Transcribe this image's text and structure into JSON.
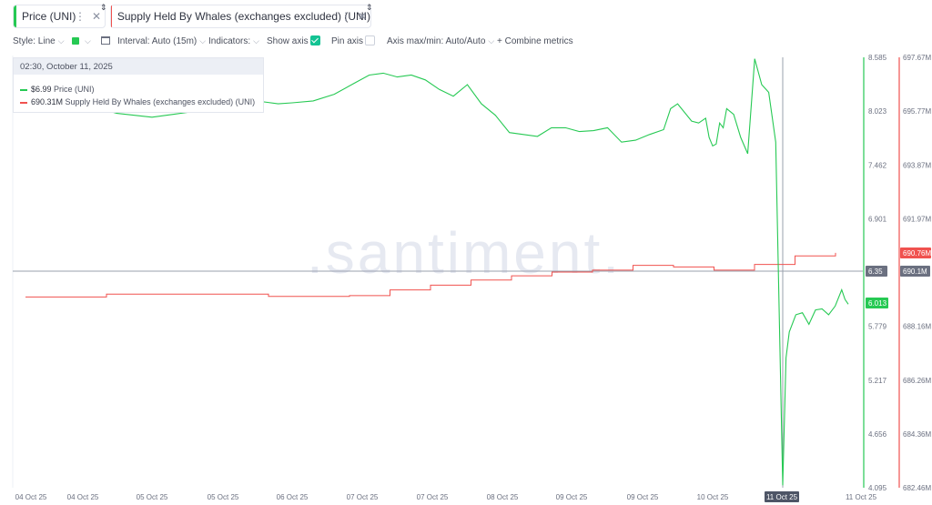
{
  "tabs": [
    {
      "label": "Price (UNI)",
      "color": "#26c953"
    },
    {
      "label": "Supply Held By Whales (exchanges excluded) (UNI)",
      "color": "#f0524f"
    }
  ],
  "toolbar": {
    "style_label": "Style: Line",
    "interval_label": "Interval: Auto (15m)",
    "indicators_label": "Indicators:",
    "show_axis_label": "Show axis",
    "show_axis_checked": true,
    "pin_axis_label": "Pin axis",
    "pin_axis_checked": false,
    "axis_label": "Axis max/min: Auto/Auto",
    "combine_label": "Combine metrics"
  },
  "tooltip": {
    "date": "02:30, October 11, 2025",
    "rows": [
      {
        "value": "$6.99",
        "name": "Price (UNI)",
        "color": "#26c953"
      },
      {
        "value": "690.31M",
        "name": "Supply Held By Whales (exchanges excluded) (UNI)",
        "color": "#f0524f"
      }
    ]
  },
  "watermark": ".santiment.",
  "chart_data": {
    "type": "line",
    "x_ticks": [
      "04 Oct 25",
      "04 Oct 25",
      "05 Oct 25",
      "05 Oct 25",
      "06 Oct 25",
      "07 Oct 25",
      "07 Oct 25",
      "08 Oct 25",
      "09 Oct 25",
      "09 Oct 25",
      "10 Oct 25",
      "11 Oct 25",
      "11 Oct 25"
    ],
    "x_highlight_index": 11,
    "y_left": {
      "ticks": [
        8.585,
        8.023,
        7.462,
        6.901,
        6.35,
        5.779,
        5.217,
        4.656,
        4.095
      ],
      "min": 4.095,
      "max": 8.585,
      "color": "#26c953"
    },
    "y_right": {
      "ticks": [
        "697.67M",
        "695.77M",
        "693.87M",
        "691.97M",
        "690.1M",
        "688.16M",
        "686.26M",
        "684.36M",
        "682.46M"
      ],
      "min": 682.46,
      "max": 697.67,
      "color": "#f0524f"
    },
    "crosshair": {
      "price_label": "6.35",
      "supply_label": "690.1M"
    },
    "current": {
      "price_label": "6.013",
      "supply_label": "690.76M"
    },
    "series": [
      {
        "name": "Price (UNI)",
        "color": "#26c953",
        "x": [
          0.0,
          0.05,
          0.1,
          0.13,
          0.16,
          0.2,
          0.23,
          0.26,
          0.28,
          0.3,
          0.33,
          0.36,
          0.39,
          0.41,
          0.43,
          0.45,
          0.47,
          0.49,
          0.51,
          0.53,
          0.55,
          0.57,
          0.59,
          0.61,
          0.63,
          0.65,
          0.67,
          0.69,
          0.71,
          0.73,
          0.75,
          0.77,
          0.79,
          0.81,
          0.83,
          0.84,
          0.85,
          0.87,
          0.88,
          0.89,
          0.895,
          0.9,
          0.905,
          0.91,
          0.915,
          0.92,
          0.93,
          0.94,
          0.95,
          0.96,
          0.97,
          0.98,
          0.99,
          1.0
        ],
        "y": [
          8.1,
          8.0,
          7.96,
          7.99,
          8.02,
          8.04,
          8.15,
          8.12,
          8.1,
          8.11,
          8.13,
          8.2,
          8.32,
          8.4,
          8.42,
          8.38,
          8.4,
          8.35,
          8.25,
          8.18,
          8.3,
          8.1,
          7.98,
          7.8,
          7.78,
          7.76,
          7.85,
          7.85,
          7.81,
          7.82,
          7.85,
          7.7,
          7.72,
          7.78,
          7.83,
          8.05,
          8.1,
          7.92,
          7.9,
          7.95,
          7.75,
          7.66,
          7.68,
          7.9,
          7.85,
          8.05,
          7.99,
          7.75,
          7.58,
          8.57,
          8.3,
          8.22,
          7.7,
          4.12
        ],
        "x_recovery": [
          0.0,
          0.05,
          0.1,
          0.2,
          0.3,
          0.4,
          0.5,
          0.6,
          0.7,
          0.8,
          0.9,
          0.95,
          1.0
        ],
        "y_recovery": [
          4.12,
          5.45,
          5.72,
          5.9,
          5.92,
          5.8,
          5.95,
          5.96,
          5.9,
          5.99,
          6.16,
          6.06,
          6.01
        ]
      },
      {
        "name": "Supply Held By Whales (exchanges excluded) (UNI)",
        "color": "#f0524f",
        "x": [
          0.0,
          0.1,
          0.2,
          0.3,
          0.4,
          0.45,
          0.5,
          0.55,
          0.6,
          0.65,
          0.7,
          0.75,
          0.8,
          0.85,
          0.9,
          0.95,
          1.0
        ],
        "y": [
          689.2,
          689.3,
          689.3,
          689.22,
          689.25,
          689.45,
          689.62,
          689.8,
          689.95,
          690.08,
          690.15,
          690.32,
          690.26,
          690.15,
          690.35,
          690.65,
          690.76
        ]
      }
    ]
  }
}
